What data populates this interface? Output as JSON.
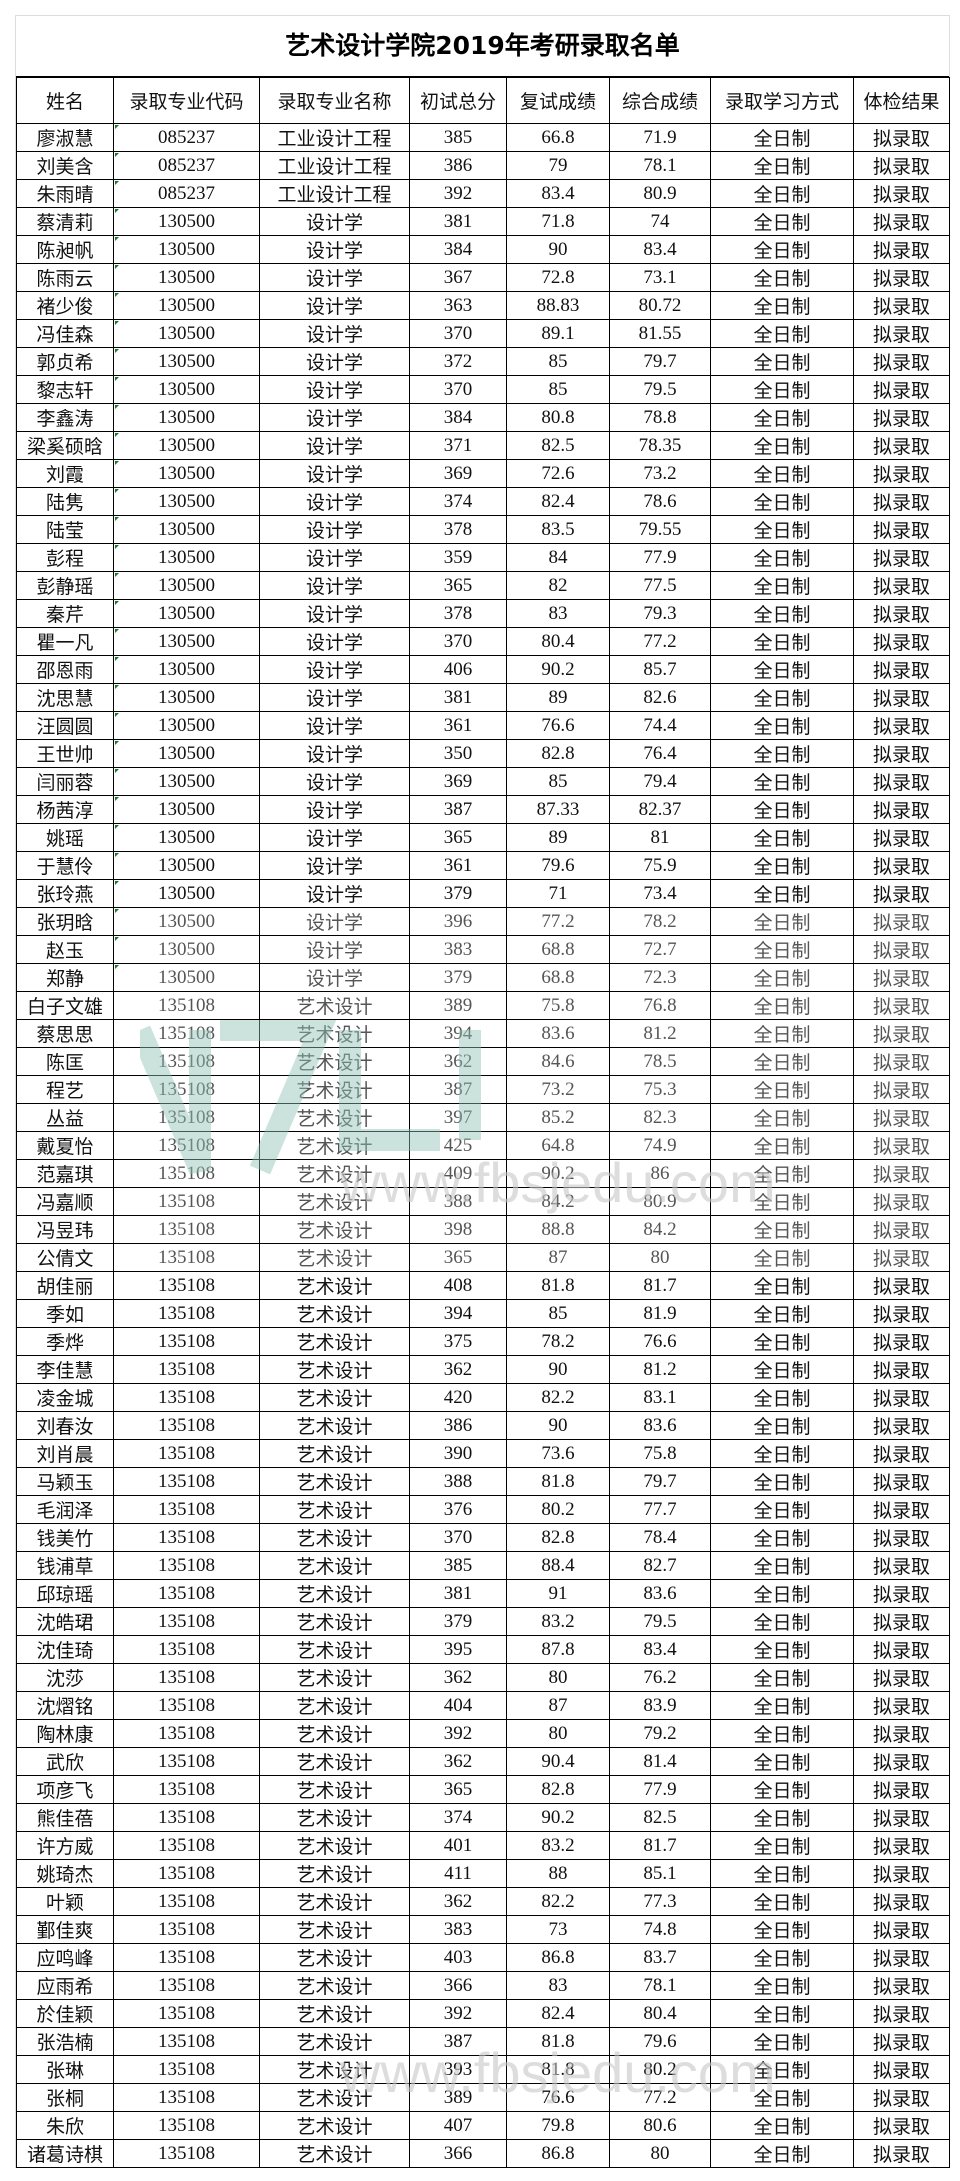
{
  "title": "艺术设计学院2019年考研录取名单",
  "headers": [
    "姓名",
    "录取专业代码",
    "录取专业名称",
    "初试总分",
    "复试成绩",
    "综合成绩",
    "录取学习方式",
    "体检结果"
  ],
  "rows": [
    [
      "廖淑慧",
      "085237",
      "工业设计工程",
      "385",
      "66.8",
      "71.9",
      "全日制",
      "拟录取"
    ],
    [
      "刘美含",
      "085237",
      "工业设计工程",
      "386",
      "79",
      "78.1",
      "全日制",
      "拟录取"
    ],
    [
      "朱雨晴",
      "085237",
      "工业设计工程",
      "392",
      "83.4",
      "80.9",
      "全日制",
      "拟录取"
    ],
    [
      "蔡清莉",
      "130500",
      "设计学",
      "381",
      "71.8",
      "74",
      "全日制",
      "拟录取"
    ],
    [
      "陈昶帆",
      "130500",
      "设计学",
      "384",
      "90",
      "83.4",
      "全日制",
      "拟录取"
    ],
    [
      "陈雨云",
      "130500",
      "设计学",
      "367",
      "72.8",
      "73.1",
      "全日制",
      "拟录取"
    ],
    [
      "褚少俊",
      "130500",
      "设计学",
      "363",
      "88.83",
      "80.72",
      "全日制",
      "拟录取"
    ],
    [
      "冯佳森",
      "130500",
      "设计学",
      "370",
      "89.1",
      "81.55",
      "全日制",
      "拟录取"
    ],
    [
      "郭贞希",
      "130500",
      "设计学",
      "372",
      "85",
      "79.7",
      "全日制",
      "拟录取"
    ],
    [
      "黎志轩",
      "130500",
      "设计学",
      "370",
      "85",
      "79.5",
      "全日制",
      "拟录取"
    ],
    [
      "李鑫涛",
      "130500",
      "设计学",
      "384",
      "80.8",
      "78.8",
      "全日制",
      "拟录取"
    ],
    [
      "梁奚硕晗",
      "130500",
      "设计学",
      "371",
      "82.5",
      "78.35",
      "全日制",
      "拟录取"
    ],
    [
      "刘霞",
      "130500",
      "设计学",
      "369",
      "72.6",
      "73.2",
      "全日制",
      "拟录取"
    ],
    [
      "陆隽",
      "130500",
      "设计学",
      "374",
      "82.4",
      "78.6",
      "全日制",
      "拟录取"
    ],
    [
      "陆莹",
      "130500",
      "设计学",
      "378",
      "83.5",
      "79.55",
      "全日制",
      "拟录取"
    ],
    [
      "彭程",
      "130500",
      "设计学",
      "359",
      "84",
      "77.9",
      "全日制",
      "拟录取"
    ],
    [
      "彭静瑶",
      "130500",
      "设计学",
      "365",
      "82",
      "77.5",
      "全日制",
      "拟录取"
    ],
    [
      "秦芹",
      "130500",
      "设计学",
      "378",
      "83",
      "79.3",
      "全日制",
      "拟录取"
    ],
    [
      "瞿一凡",
      "130500",
      "设计学",
      "370",
      "80.4",
      "77.2",
      "全日制",
      "拟录取"
    ],
    [
      "邵恩雨",
      "130500",
      "设计学",
      "406",
      "90.2",
      "85.7",
      "全日制",
      "拟录取"
    ],
    [
      "沈思慧",
      "130500",
      "设计学",
      "381",
      "89",
      "82.6",
      "全日制",
      "拟录取"
    ],
    [
      "汪圆圆",
      "130500",
      "设计学",
      "361",
      "76.6",
      "74.4",
      "全日制",
      "拟录取"
    ],
    [
      "王世帅",
      "130500",
      "设计学",
      "350",
      "82.8",
      "76.4",
      "全日制",
      "拟录取"
    ],
    [
      "闫丽蓉",
      "130500",
      "设计学",
      "369",
      "85",
      "79.4",
      "全日制",
      "拟录取"
    ],
    [
      "杨茜淳",
      "130500",
      "设计学",
      "387",
      "87.33",
      "82.37",
      "全日制",
      "拟录取"
    ],
    [
      "姚瑶",
      "130500",
      "设计学",
      "365",
      "89",
      "81",
      "全日制",
      "拟录取"
    ],
    [
      "于慧伶",
      "130500",
      "设计学",
      "361",
      "79.6",
      "75.9",
      "全日制",
      "拟录取"
    ],
    [
      "张玲燕",
      "130500",
      "设计学",
      "379",
      "71",
      "73.4",
      "全日制",
      "拟录取"
    ],
    [
      "张玥晗",
      "130500",
      "设计学",
      "396",
      "77.2",
      "78.2",
      "全日制",
      "拟录取"
    ],
    [
      "赵玉",
      "130500",
      "设计学",
      "383",
      "68.8",
      "72.7",
      "全日制",
      "拟录取"
    ],
    [
      "郑静",
      "130500",
      "设计学",
      "379",
      "68.8",
      "72.3",
      "全日制",
      "拟录取"
    ],
    [
      "白子文雄",
      "135108",
      "艺术设计",
      "389",
      "75.8",
      "76.8",
      "全日制",
      "拟录取"
    ],
    [
      "蔡思思",
      "135108",
      "艺术设计",
      "394",
      "83.6",
      "81.2",
      "全日制",
      "拟录取"
    ],
    [
      "陈匡",
      "135108",
      "艺术设计",
      "362",
      "84.6",
      "78.5",
      "全日制",
      "拟录取"
    ],
    [
      "程艺",
      "135108",
      "艺术设计",
      "387",
      "73.2",
      "75.3",
      "全日制",
      "拟录取"
    ],
    [
      "丛益",
      "135108",
      "艺术设计",
      "397",
      "85.2",
      "82.3",
      "全日制",
      "拟录取"
    ],
    [
      "戴夏怡",
      "135108",
      "艺术设计",
      "425",
      "64.8",
      "74.9",
      "全日制",
      "拟录取"
    ],
    [
      "范嘉琪",
      "135108",
      "艺术设计",
      "409",
      "90.2",
      "86",
      "全日制",
      "拟录取"
    ],
    [
      "冯嘉顺",
      "135108",
      "艺术设计",
      "388",
      "84.2",
      "80.9",
      "全日制",
      "拟录取"
    ],
    [
      "冯昱玮",
      "135108",
      "艺术设计",
      "398",
      "88.8",
      "84.2",
      "全日制",
      "拟录取"
    ],
    [
      "公倩文",
      "135108",
      "艺术设计",
      "365",
      "87",
      "80",
      "全日制",
      "拟录取"
    ],
    [
      "胡佳丽",
      "135108",
      "艺术设计",
      "408",
      "81.8",
      "81.7",
      "全日制",
      "拟录取"
    ],
    [
      "季如",
      "135108",
      "艺术设计",
      "394",
      "85",
      "81.9",
      "全日制",
      "拟录取"
    ],
    [
      "季烨",
      "135108",
      "艺术设计",
      "375",
      "78.2",
      "76.6",
      "全日制",
      "拟录取"
    ],
    [
      "李佳慧",
      "135108",
      "艺术设计",
      "362",
      "90",
      "81.2",
      "全日制",
      "拟录取"
    ],
    [
      "凌金城",
      "135108",
      "艺术设计",
      "420",
      "82.2",
      "83.1",
      "全日制",
      "拟录取"
    ],
    [
      "刘春汝",
      "135108",
      "艺术设计",
      "386",
      "90",
      "83.6",
      "全日制",
      "拟录取"
    ],
    [
      "刘肖晨",
      "135108",
      "艺术设计",
      "390",
      "73.6",
      "75.8",
      "全日制",
      "拟录取"
    ],
    [
      "马颖玉",
      "135108",
      "艺术设计",
      "388",
      "81.8",
      "79.7",
      "全日制",
      "拟录取"
    ],
    [
      "毛润泽",
      "135108",
      "艺术设计",
      "376",
      "80.2",
      "77.7",
      "全日制",
      "拟录取"
    ],
    [
      "钱美竹",
      "135108",
      "艺术设计",
      "370",
      "82.8",
      "78.4",
      "全日制",
      "拟录取"
    ],
    [
      "钱浦草",
      "135108",
      "艺术设计",
      "385",
      "88.4",
      "82.7",
      "全日制",
      "拟录取"
    ],
    [
      "邱琼瑶",
      "135108",
      "艺术设计",
      "381",
      "91",
      "83.6",
      "全日制",
      "拟录取"
    ],
    [
      "沈皓珺",
      "135108",
      "艺术设计",
      "379",
      "83.2",
      "79.5",
      "全日制",
      "拟录取"
    ],
    [
      "沈佳琦",
      "135108",
      "艺术设计",
      "395",
      "87.8",
      "83.4",
      "全日制",
      "拟录取"
    ],
    [
      "沈莎",
      "135108",
      "艺术设计",
      "362",
      "80",
      "76.2",
      "全日制",
      "拟录取"
    ],
    [
      "沈熠铭",
      "135108",
      "艺术设计",
      "404",
      "87",
      "83.9",
      "全日制",
      "拟录取"
    ],
    [
      "陶林康",
      "135108",
      "艺术设计",
      "392",
      "80",
      "79.2",
      "全日制",
      "拟录取"
    ],
    [
      "武欣",
      "135108",
      "艺术设计",
      "362",
      "90.4",
      "81.4",
      "全日制",
      "拟录取"
    ],
    [
      "项彦飞",
      "135108",
      "艺术设计",
      "365",
      "82.8",
      "77.9",
      "全日制",
      "拟录取"
    ],
    [
      "熊佳蓓",
      "135108",
      "艺术设计",
      "374",
      "90.2",
      "82.5",
      "全日制",
      "拟录取"
    ],
    [
      "许方威",
      "135108",
      "艺术设计",
      "401",
      "83.2",
      "81.7",
      "全日制",
      "拟录取"
    ],
    [
      "姚琦杰",
      "135108",
      "艺术设计",
      "411",
      "88",
      "85.1",
      "全日制",
      "拟录取"
    ],
    [
      "叶颖",
      "135108",
      "艺术设计",
      "362",
      "82.2",
      "77.3",
      "全日制",
      "拟录取"
    ],
    [
      "鄞佳爽",
      "135108",
      "艺术设计",
      "383",
      "73",
      "74.8",
      "全日制",
      "拟录取"
    ],
    [
      "应鸣峰",
      "135108",
      "艺术设计",
      "403",
      "86.8",
      "83.7",
      "全日制",
      "拟录取"
    ],
    [
      "应雨希",
      "135108",
      "艺术设计",
      "366",
      "83",
      "78.1",
      "全日制",
      "拟录取"
    ],
    [
      "於佳颖",
      "135108",
      "艺术设计",
      "392",
      "82.4",
      "80.4",
      "全日制",
      "拟录取"
    ],
    [
      "张浩楠",
      "135108",
      "艺术设计",
      "387",
      "81.8",
      "79.6",
      "全日制",
      "拟录取"
    ],
    [
      "张琳",
      "135108",
      "艺术设计",
      "393",
      "81.8",
      "80.2",
      "全日制",
      "拟录取"
    ],
    [
      "张桐",
      "135108",
      "艺术设计",
      "389",
      "76.6",
      "77.2",
      "全日制",
      "拟录取"
    ],
    [
      "朱欣",
      "135108",
      "艺术设计",
      "407",
      "79.8",
      "80.6",
      "全日制",
      "拟录取"
    ],
    [
      "诸葛诗棋",
      "135108",
      "艺术设计",
      "366",
      "86.8",
      "80",
      "全日制",
      "拟录取"
    ]
  ],
  "watermark": {
    "text": "www.fbsjedu.com",
    "color": "#8fc3b6"
  }
}
